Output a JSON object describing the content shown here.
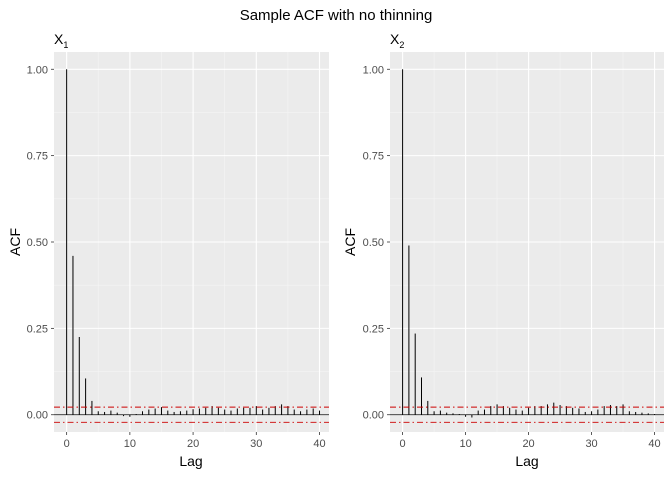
{
  "title": "Sample ACF with no thinning",
  "colors": {
    "panel_bg": "#ebebeb",
    "grid_major": "#ffffff",
    "bar": "#000000",
    "ci_line": "#cc0000",
    "axis_text": "#4d4d4d"
  },
  "chart_data": [
    {
      "type": "bar",
      "panel_label": {
        "base": "X",
        "sub": "1"
      },
      "xlabel": "Lag",
      "ylabel": "ACF",
      "xlim": [
        -2,
        41.5
      ],
      "ylim": [
        -0.05,
        1.05
      ],
      "x_ticks": [
        0,
        10,
        20,
        30,
        40
      ],
      "x_tick_labels": [
        "0",
        "10",
        "20",
        "30",
        "40"
      ],
      "y_ticks": [
        0,
        0.25,
        0.5,
        0.75,
        1
      ],
      "y_tick_labels": [
        "0.00",
        "0.25",
        "0.50",
        "0.75",
        "1.00"
      ],
      "ci": [
        0.022,
        -0.022
      ],
      "lags": [
        0,
        1,
        2,
        3,
        4,
        5,
        6,
        7,
        8,
        9,
        10,
        11,
        12,
        13,
        14,
        15,
        16,
        17,
        18,
        19,
        20,
        21,
        22,
        23,
        24,
        25,
        26,
        27,
        28,
        29,
        30,
        31,
        32,
        33,
        34,
        35,
        36,
        37,
        38,
        39,
        40
      ],
      "values": [
        1.0,
        0.46,
        0.225,
        0.105,
        0.04,
        0.01,
        0.008,
        0.012,
        0.006,
        -0.004,
        -0.006,
        0.002,
        0.01,
        0.015,
        0.018,
        0.022,
        0.012,
        0.008,
        0.01,
        0.012,
        0.016,
        0.018,
        0.02,
        0.025,
        0.02,
        0.015,
        0.012,
        0.018,
        0.02,
        0.02,
        0.025,
        0.015,
        0.02,
        0.025,
        0.03,
        0.025,
        0.015,
        0.01,
        0.015,
        0.018,
        0.012
      ]
    },
    {
      "type": "bar",
      "panel_label": {
        "base": "X",
        "sub": "2"
      },
      "xlabel": "Lag",
      "ylabel": "ACF",
      "xlim": [
        -2,
        41.5
      ],
      "ylim": [
        -0.05,
        1.05
      ],
      "x_ticks": [
        0,
        10,
        20,
        30,
        40
      ],
      "x_tick_labels": [
        "0",
        "10",
        "20",
        "30",
        "40"
      ],
      "y_ticks": [
        0,
        0.25,
        0.5,
        0.75,
        1
      ],
      "y_tick_labels": [
        "0.00",
        "0.25",
        "0.50",
        "0.75",
        "1.00"
      ],
      "ci": [
        0.022,
        -0.022
      ],
      "lags": [
        0,
        1,
        2,
        3,
        4,
        5,
        6,
        7,
        8,
        9,
        10,
        11,
        12,
        13,
        14,
        15,
        16,
        17,
        18,
        19,
        20,
        21,
        22,
        23,
        24,
        25,
        26,
        27,
        28,
        29,
        30,
        31,
        32,
        33,
        34,
        35,
        36,
        37,
        38,
        39,
        40
      ],
      "values": [
        1.0,
        0.49,
        0.235,
        0.108,
        0.04,
        0.01,
        0.012,
        0.006,
        0.004,
        0.002,
        -0.006,
        -0.008,
        0.012,
        0.015,
        0.025,
        0.03,
        0.025,
        0.02,
        0.015,
        0.012,
        0.02,
        0.025,
        0.025,
        0.03,
        0.035,
        0.028,
        0.025,
        0.02,
        0.018,
        0.008,
        0.01,
        0.015,
        0.025,
        0.028,
        0.025,
        0.03,
        0.01,
        0.008,
        0.006,
        0.004,
        0.002
      ]
    }
  ]
}
